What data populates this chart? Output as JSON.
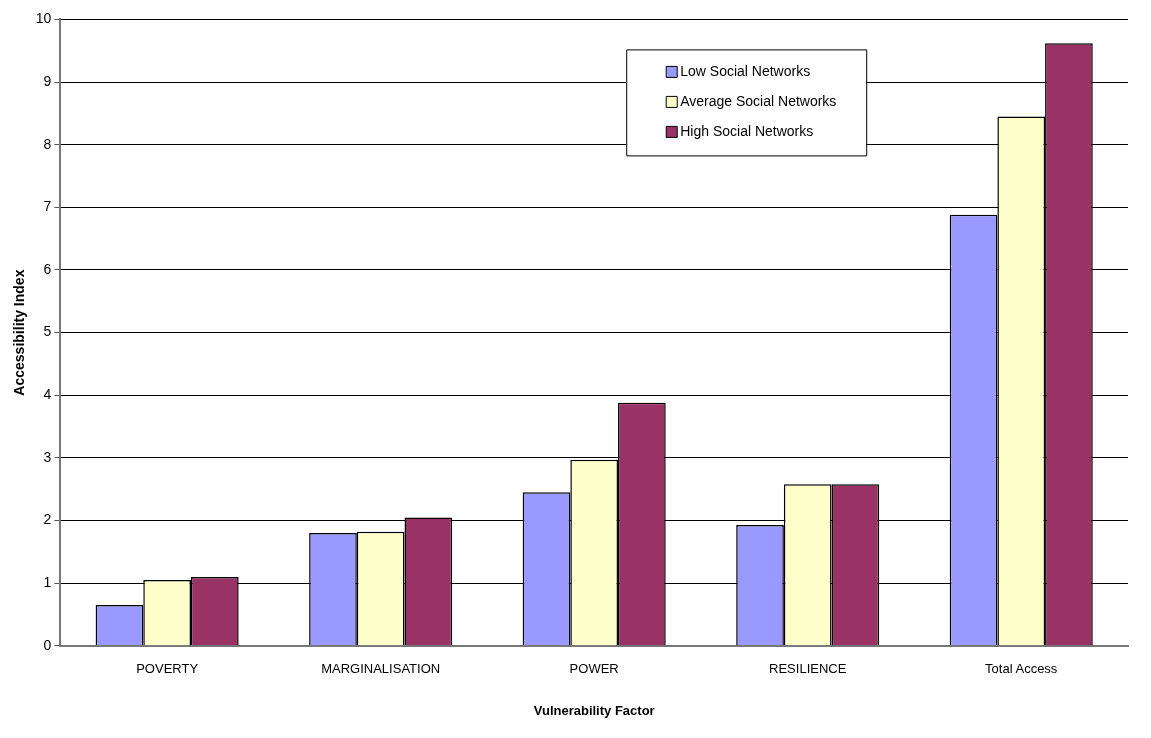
{
  "chart_data": {
    "type": "bar",
    "xlabel": "Vulnerability Factor",
    "ylabel": "Accessibility Index",
    "categories": [
      "POVERTY",
      "MARGINALISATION",
      "POWER",
      "RESILIENCE",
      "Total Access"
    ],
    "series": [
      {
        "name": "Low Social Networks",
        "color": "#9999ff",
        "values": [
          0.65,
          1.8,
          2.45,
          1.93,
          6.88
        ]
      },
      {
        "name": "Average Social Networks",
        "color": "#ffffcc",
        "values": [
          1.05,
          1.82,
          2.97,
          2.58,
          8.45
        ]
      },
      {
        "name": "High Social Networks",
        "color": "#993366",
        "values": [
          1.1,
          2.05,
          3.88,
          2.58,
          9.62
        ]
      }
    ],
    "ylim": [
      0,
      10
    ],
    "yticks": [
      0,
      1,
      2,
      3,
      4,
      5,
      6,
      7,
      8,
      9,
      10
    ],
    "grid": "y",
    "legend": "top right"
  }
}
